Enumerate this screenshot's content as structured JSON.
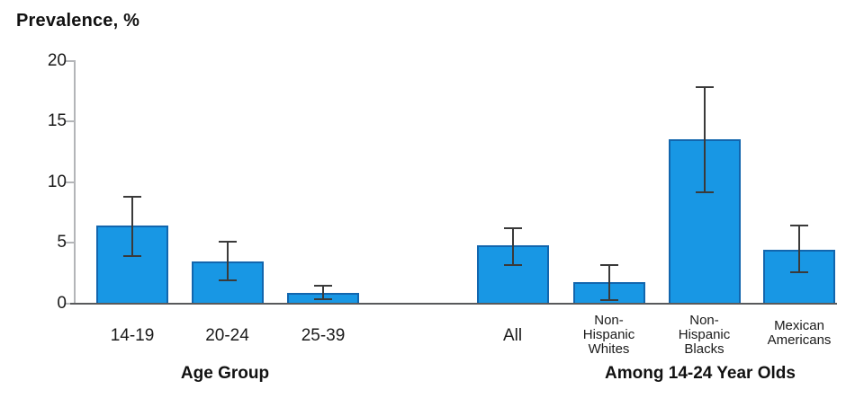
{
  "chart_data": {
    "type": "bar",
    "title": "Prevalence, %",
    "ylabel": "Prevalence, %",
    "xlabel": "",
    "ylim": [
      0,
      20
    ],
    "yticks": [
      0,
      5,
      10,
      15,
      20
    ],
    "grid": false,
    "legend": "none",
    "bar_fill_color": "#1897e4",
    "bar_border_color": "#1266ae",
    "error_bar_color": "#3a3a3a",
    "axis_line_color": "#b3b5b8",
    "baseline_color": "#58595b",
    "error_bars": true,
    "groups": [
      {
        "label": "Age Group",
        "bars": [
          {
            "category": "14-19",
            "label_lines": [
              "14-19"
            ],
            "value": 6.4,
            "ci_low": 3.9,
            "ci_high": 8.8
          },
          {
            "category": "20-24",
            "label_lines": [
              "20-24"
            ],
            "value": 3.5,
            "ci_low": 1.9,
            "ci_high": 5.1
          },
          {
            "category": "25-39",
            "label_lines": [
              "25-39"
            ],
            "value": 0.9,
            "ci_low": 0.4,
            "ci_high": 1.5
          }
        ]
      },
      {
        "label": "Among 14-24 Year Olds",
        "bars": [
          {
            "category": "All",
            "label_lines": [
              "All"
            ],
            "value": 4.8,
            "ci_low": 3.2,
            "ci_high": 6.2
          },
          {
            "category": "Non-Hispanic Whites",
            "label_lines": [
              "Non-",
              "Hispanic",
              "Whites"
            ],
            "value": 1.8,
            "ci_low": 0.3,
            "ci_high": 3.2
          },
          {
            "category": "Non-Hispanic Blacks",
            "label_lines": [
              "Non-",
              "Hispanic",
              "Blacks"
            ],
            "value": 13.5,
            "ci_low": 9.2,
            "ci_high": 17.8
          },
          {
            "category": "Mexican Americans",
            "label_lines": [
              "Mexican",
              "Americans"
            ],
            "value": 4.4,
            "ci_low": 2.6,
            "ci_high": 6.4
          }
        ]
      }
    ]
  }
}
